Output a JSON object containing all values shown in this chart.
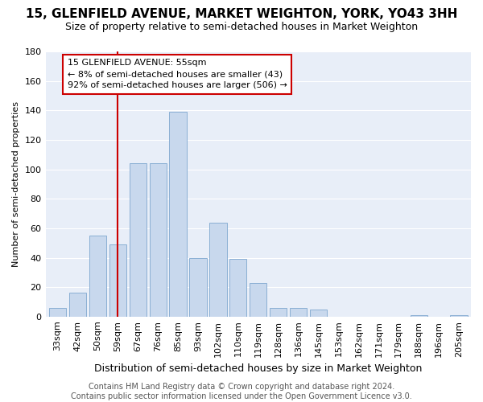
{
  "title": "15, GLENFIELD AVENUE, MARKET WEIGHTON, YORK, YO43 3HH",
  "subtitle": "Size of property relative to semi-detached houses in Market Weighton",
  "xlabel": "Distribution of semi-detached houses by size in Market Weighton",
  "ylabel": "Number of semi-detached properties",
  "categories": [
    "33sqm",
    "42sqm",
    "50sqm",
    "59sqm",
    "67sqm",
    "76sqm",
    "85sqm",
    "93sqm",
    "102sqm",
    "110sqm",
    "119sqm",
    "128sqm",
    "136sqm",
    "145sqm",
    "153sqm",
    "162sqm",
    "171sqm",
    "179sqm",
    "188sqm",
    "196sqm",
    "205sqm"
  ],
  "values": [
    6,
    16,
    55,
    49,
    104,
    104,
    139,
    40,
    64,
    39,
    23,
    6,
    6,
    5,
    0,
    0,
    0,
    0,
    1,
    0,
    1
  ],
  "bar_color": "#c8d8ed",
  "bar_edge_color": "#8aafd4",
  "vline_x_idx": 3,
  "vline_color": "#cc0000",
  "ann_line1": "15 GLENFIELD AVENUE: 55sqm",
  "ann_line2": "← 8% of semi-detached houses are smaller (43)",
  "ann_line3": "92% of semi-detached houses are larger (506) →",
  "annotation_box_color": "#ffffff",
  "annotation_box_edge": "#cc0000",
  "ylim": [
    0,
    180
  ],
  "yticks": [
    0,
    20,
    40,
    60,
    80,
    100,
    120,
    140,
    160,
    180
  ],
  "footer": "Contains HM Land Registry data © Crown copyright and database right 2024.\nContains public sector information licensed under the Open Government Licence v3.0.",
  "bg_color": "#ffffff",
  "plot_bg_color": "#e8eef8",
  "grid_color": "#ffffff",
  "title_fontsize": 11,
  "subtitle_fontsize": 9,
  "xlabel_fontsize": 9,
  "ylabel_fontsize": 8,
  "tick_fontsize": 8,
  "footer_fontsize": 7
}
